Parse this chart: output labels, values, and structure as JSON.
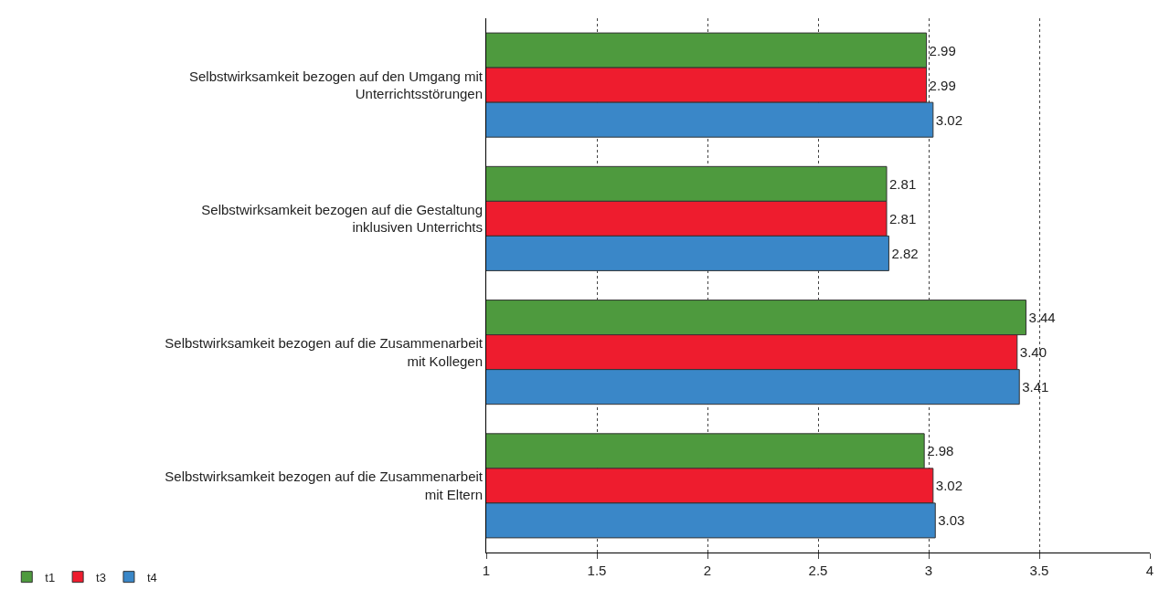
{
  "chart_data": {
    "type": "bar",
    "orientation": "horizontal",
    "categories": [
      "Selbstwirksamkeit bezogen auf den Umgang mit Unterrichtsstörungen",
      "Selbstwirksamkeit bezogen auf die Gestaltung inklusiven Unterrichts",
      "Selbstwirksamkeit bezogen auf die Zusammenarbeit mit Kollegen",
      "Selbstwirksamkeit bezogen auf die Zusammenarbeit mit Eltern"
    ],
    "series": [
      {
        "name": "t1",
        "color": "#4e9a3e",
        "values": [
          2.99,
          2.81,
          3.44,
          2.98
        ],
        "value_labels": [
          "2.99",
          "2.81",
          "3.44",
          "2.98"
        ]
      },
      {
        "name": "t3",
        "color": "#ee1c2e",
        "values": [
          2.99,
          2.81,
          3.4,
          3.02
        ],
        "value_labels": [
          "2.99",
          "2.81",
          "3.40",
          "3.02"
        ]
      },
      {
        "name": "t4",
        "color": "#3a87c8",
        "values": [
          3.02,
          2.82,
          3.41,
          3.03
        ],
        "value_labels": [
          "3.02",
          "2.82",
          "3.41",
          "3.03"
        ]
      }
    ],
    "xlim": [
      1,
      4
    ],
    "xticks": [
      1,
      1.5,
      2,
      2.5,
      3,
      3.5,
      4
    ],
    "grid": "x",
    "legend": "bottom left"
  }
}
